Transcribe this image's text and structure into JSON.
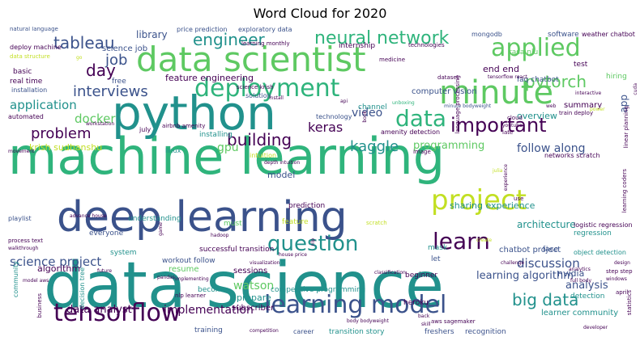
{
  "title": "Word Cloud for 2020",
  "palette": {
    "dark_purple": "#440154",
    "indigo": "#3b528b",
    "teal": "#21918c",
    "green": "#2fb47c",
    "lime": "#5ec962",
    "yellow": "#c2df23",
    "bright_yellow": "#e7e419"
  },
  "words": {
    "data_science": "data science",
    "machine_learning": "machine learning",
    "python": "python",
    "deep_learning": "deep learning",
    "data_scientist": "data scientist",
    "minute": "minute",
    "tensorflow": "tensorflow",
    "learning_model": "learning model",
    "project": "project",
    "deployment": "deployment",
    "applied": "applied",
    "neural_network": "neural network",
    "important": "important",
    "data": "data",
    "learn": "learn",
    "question": "question",
    "engineer": "engineer",
    "tableau": "tableau",
    "interviews": "interviews",
    "pytorch": "pytorch",
    "day": "day",
    "job": "job",
    "problem": "problem",
    "building": "building",
    "kaggle": "kaggle",
    "keras": "keras",
    "application": "application",
    "docker": "docker",
    "big_data": "big data",
    "science_project": "science project",
    "discussion": "discussion",
    "implementation": "implementation",
    "follow_along": "follow along",
    "programming": "programming",
    "computer_vision": "computer vision",
    "video": "video",
    "analysis": "analysis",
    "learning_algorithm": "learning algorithm",
    "data_analyst": "data analyst",
    "watson": "watson",
    "gpu": "gpu",
    "library": "library",
    "feature_engineering": "feature engineering",
    "end_end": "end end",
    "science_job": "science job",
    "architecture": "architecture",
    "overview": "overview",
    "summary": "summary",
    "krish_sudhanshu": "krish sudhanshu",
    "sharing_experience": "sharing experience",
    "chatbot_project": "chatbot project",
    "sessions": "sessions",
    "prepare": "prepare",
    "subscriber": "subscriber",
    "resume": "resume",
    "model": "model",
    "algorithm": "algorithm",
    "nvidia": "nvidia",
    "learner_community": "learner community",
    "competitive_programming": "competitive programming",
    "basic": "basic",
    "real_time": "real time",
    "free": "free",
    "building2": "building",
    "rasa_nlu": "rasa nlu",
    "faq_chatbot": "faq chatbot",
    "test": "test",
    "hiring": "hiring",
    "understanding": "understanding",
    "feature": "feature",
    "must": "must",
    "become": "become",
    "training": "training",
    "transition_story": "transition story",
    "freshers": "freshers",
    "recognition": "recognition",
    "beginner": "beginner",
    "heroku": "heroku",
    "successful_transition": "successful transition",
    "workout_follow": "workout follow",
    "system": "system",
    "let": "let",
    "face": "face",
    "detection": "detection",
    "regression": "regression",
    "logistic_regression": "logistic regression",
    "object_detection": "object detection",
    "mask": "mask",
    "prediction": "prediction",
    "intuition": "intuition",
    "installing": "installing",
    "everyone": "everyone",
    "linux": "linux",
    "channel": "channel",
    "technology": "technology",
    "solution": "solution",
    "installation": "installation",
    "automated": "automated",
    "playlist": "playlist",
    "community": "community",
    "app": "app",
    "software": "software",
    "weather_chatbot": "weather chatbot",
    "mongodb": "mongodb",
    "natural_language": "natural language",
    "price_prediction": "price prediction",
    "exploratory_data": "exploratory data",
    "internship": "internship",
    "technologies": "technologies",
    "medicine": "medicine",
    "deploy_machine": "deploy machine",
    "data_structure": "data structure",
    "learning_monthly": "learning monthly",
    "tensorflow_react": "tensorflow react",
    "train_deploy": "train deploy",
    "minute_bodyweight": "minute bodyweight",
    "amenity_detection": "amenity detection",
    "airbnb_amenity": "airbnb amenity",
    "networks_scratch": "networks scratch",
    "linear_planning": "linear planning",
    "learning_coders": "learning coders",
    "language_processing": "language processing",
    "full_body": "full body",
    "step_step": "step step",
    "aws_sagemaker": "aws sagemaker",
    "body_bodyweight": "body bodyweight",
    "nlp_learner": "nlp learner",
    "science_krish": "science krish",
    "july": "july",
    "dataset": "dataset",
    "unboxing": "unboxing",
    "youtube": "youtube",
    "cloud": "cloud",
    "image": "image",
    "late": "late",
    "april": "april",
    "statistics": "statistics",
    "use": "use",
    "scratch": "scratch",
    "create": "create",
    "visualization": "visualization",
    "pandas": "pandas",
    "decision_tree": "decision tree",
    "process_text": "process text",
    "walkthrough": "walkthrough",
    "advance_house": "advance house",
    "house_price": "house price",
    "depth_intuition": "depth intuition",
    "business": "business",
    "career": "career",
    "developer": "developer",
    "workstation": "workstation",
    "movement": "movement",
    "implementing": "implementing",
    "classification": "classification",
    "challenge": "challenge",
    "analytics": "analytics",
    "cuda": "cuda",
    "interactive": "interactive",
    "power": "power",
    "design": "design",
    "windows": "windows",
    "skill": "skill",
    "back": "back",
    "competition": "competition",
    "hadoop": "hadoop",
    "game": "game",
    "nlp": "nlp",
    "model_aws": "model aws",
    "future": "future",
    "api": "api",
    "web": "web",
    "book": "book",
    "install": "install",
    "go": "go",
    "julia": "julia",
    "experience": "experience"
  }
}
